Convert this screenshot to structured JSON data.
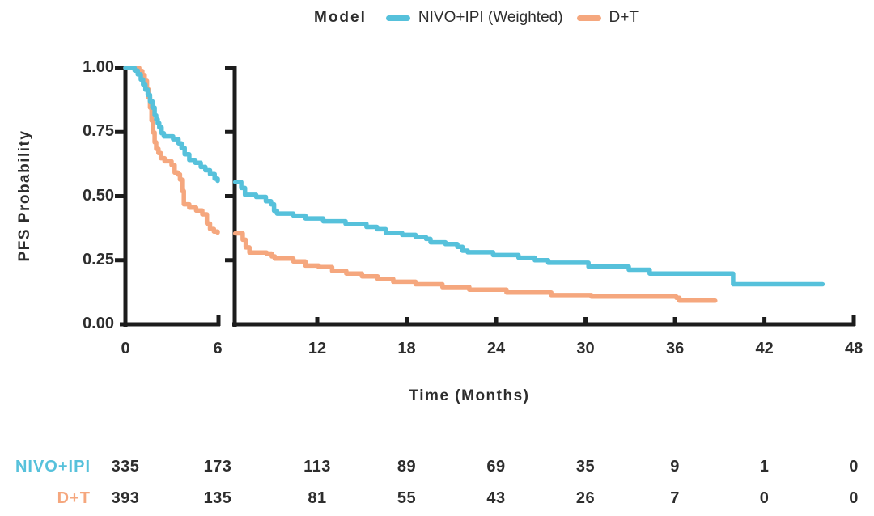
{
  "legend": {
    "title": "Model",
    "items": [
      {
        "label": "NIVO+IPI (Weighted)",
        "color": "#56C1DB"
      },
      {
        "label": "D+T",
        "color": "#F5A77E"
      }
    ]
  },
  "axes": {
    "ylabel": "PFS Probability",
    "xlabel": "Time (Months)"
  },
  "colors": {
    "axis": "#1c1c1c",
    "text": "#2d2d2d",
    "background": "#ffffff"
  },
  "chart_data": {
    "type": "line",
    "subtype": "kaplan-meier-step",
    "title": "",
    "legend_title": "Model",
    "xlabel": "Time (Months)",
    "ylabel": "PFS Probability",
    "ylim": [
      0,
      1
    ],
    "yticks": [
      0,
      0.25,
      0.5,
      0.75,
      1
    ],
    "xticks": [
      0,
      6,
      12,
      18,
      24,
      30,
      36,
      42,
      48
    ],
    "x_axis_break": [
      6,
      6.5
    ],
    "xlim_panels": [
      [
        0,
        6
      ],
      [
        6.5,
        48
      ]
    ],
    "grid": false,
    "legend_position": "top",
    "series": [
      {
        "name": "NIVO+IPI (Weighted)",
        "color": "#56C1DB",
        "points": [
          [
            0,
            1.0
          ],
          [
            0.45,
            1.0
          ],
          [
            0.6,
            0.99
          ],
          [
            0.8,
            0.975
          ],
          [
            1.0,
            0.955
          ],
          [
            1.15,
            0.935
          ],
          [
            1.3,
            0.915
          ],
          [
            1.45,
            0.895
          ],
          [
            1.6,
            0.87
          ],
          [
            1.75,
            0.845
          ],
          [
            1.9,
            0.815
          ],
          [
            2.0,
            0.8
          ],
          [
            2.1,
            0.785
          ],
          [
            2.2,
            0.768
          ],
          [
            2.35,
            0.745
          ],
          [
            2.5,
            0.733
          ],
          [
            3.1,
            0.722
          ],
          [
            3.45,
            0.706
          ],
          [
            3.65,
            0.688
          ],
          [
            3.85,
            0.663
          ],
          [
            4.15,
            0.641
          ],
          [
            4.55,
            0.63
          ],
          [
            4.9,
            0.614
          ],
          [
            5.2,
            0.601
          ],
          [
            5.5,
            0.586
          ],
          [
            5.8,
            0.568
          ],
          [
            6.0,
            0.56
          ],
          [
            6.5,
            0.555
          ],
          [
            6.9,
            0.532
          ],
          [
            7.15,
            0.505
          ],
          [
            7.9,
            0.497
          ],
          [
            8.55,
            0.48
          ],
          [
            8.9,
            0.468
          ],
          [
            9.1,
            0.443
          ],
          [
            9.3,
            0.432
          ],
          [
            10.4,
            0.424
          ],
          [
            11.2,
            0.413
          ],
          [
            12.4,
            0.402
          ],
          [
            13.9,
            0.392
          ],
          [
            15.3,
            0.38
          ],
          [
            16.0,
            0.371
          ],
          [
            16.6,
            0.356
          ],
          [
            17.7,
            0.349
          ],
          [
            18.6,
            0.34
          ],
          [
            19.3,
            0.333
          ],
          [
            19.6,
            0.32
          ],
          [
            20.6,
            0.313
          ],
          [
            21.4,
            0.302
          ],
          [
            21.75,
            0.287
          ],
          [
            22.1,
            0.281
          ],
          [
            23.8,
            0.27
          ],
          [
            25.5,
            0.26
          ],
          [
            26.6,
            0.25
          ],
          [
            27.5,
            0.24
          ],
          [
            30.2,
            0.225
          ],
          [
            32.9,
            0.213
          ],
          [
            34.3,
            0.198
          ],
          [
            39.9,
            0.156
          ],
          [
            45.9,
            0.156
          ]
        ]
      },
      {
        "name": "D+T",
        "color": "#F5A77E",
        "points": [
          [
            0,
            1.0
          ],
          [
            0.65,
            1.0
          ],
          [
            0.9,
            0.988
          ],
          [
            1.1,
            0.972
          ],
          [
            1.25,
            0.95
          ],
          [
            1.4,
            0.917
          ],
          [
            1.5,
            0.885
          ],
          [
            1.6,
            0.845
          ],
          [
            1.7,
            0.795
          ],
          [
            1.8,
            0.748
          ],
          [
            1.9,
            0.71
          ],
          [
            2.0,
            0.685
          ],
          [
            2.15,
            0.668
          ],
          [
            2.3,
            0.648
          ],
          [
            2.55,
            0.636
          ],
          [
            3.0,
            0.621
          ],
          [
            3.2,
            0.592
          ],
          [
            3.4,
            0.585
          ],
          [
            3.55,
            0.565
          ],
          [
            3.68,
            0.52
          ],
          [
            3.8,
            0.468
          ],
          [
            4.15,
            0.455
          ],
          [
            4.6,
            0.444
          ],
          [
            5.0,
            0.429
          ],
          [
            5.3,
            0.393
          ],
          [
            5.5,
            0.372
          ],
          [
            5.75,
            0.362
          ],
          [
            6.0,
            0.358
          ],
          [
            6.5,
            0.355
          ],
          [
            7.0,
            0.33
          ],
          [
            7.2,
            0.3
          ],
          [
            7.45,
            0.28
          ],
          [
            8.6,
            0.276
          ],
          [
            8.95,
            0.265
          ],
          [
            9.15,
            0.256
          ],
          [
            10.4,
            0.245
          ],
          [
            11.2,
            0.229
          ],
          [
            12.1,
            0.223
          ],
          [
            13.0,
            0.208
          ],
          [
            13.95,
            0.198
          ],
          [
            15.0,
            0.187
          ],
          [
            16.05,
            0.177
          ],
          [
            17.1,
            0.166
          ],
          [
            18.6,
            0.156
          ],
          [
            20.4,
            0.145
          ],
          [
            22.2,
            0.135
          ],
          [
            24.7,
            0.124
          ],
          [
            27.7,
            0.114
          ],
          [
            30.4,
            0.108
          ],
          [
            36.1,
            0.103
          ],
          [
            36.3,
            0.092
          ],
          [
            38.7,
            0.092
          ]
        ]
      }
    ],
    "risk_table": {
      "times": [
        0,
        6,
        12,
        18,
        24,
        30,
        36,
        42,
        48
      ],
      "rows": [
        {
          "label": "NIVO+IPI",
          "color": "#56C1DB",
          "counts": [
            335,
            173,
            113,
            89,
            69,
            35,
            9,
            1,
            0
          ]
        },
        {
          "label": "D+T",
          "color": "#F5A77E",
          "counts": [
            393,
            135,
            81,
            55,
            43,
            26,
            7,
            0,
            0
          ]
        }
      ]
    }
  }
}
